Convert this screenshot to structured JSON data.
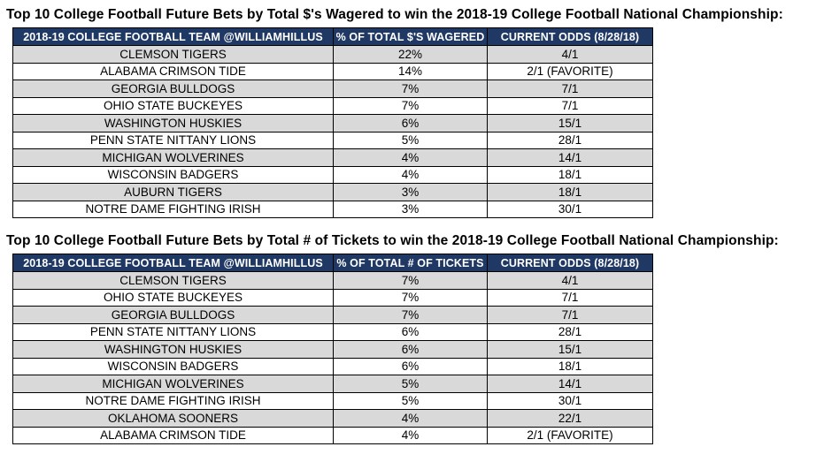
{
  "colors": {
    "header_bg": "#1F3864",
    "header_text": "#FFFFFF",
    "row_alt_bg": "#D9D9D9",
    "row_bg": "#FFFFFF",
    "border": "#000000",
    "title_text": "#000000"
  },
  "chart_data": [
    {
      "type": "table",
      "title": "Top 10 College Football Future Bets by Total $'s Wagered to win the 2018-19 College Football National Championship:",
      "columns": [
        "2018-19 COLLEGE FOOTBALL TEAM @WILLIAMHILLUS",
        "% OF TOTAL $'S WAGERED",
        "CURRENT ODDS (8/28/18)"
      ],
      "rows": [
        [
          "CLEMSON TIGERS",
          "22%",
          "4/1"
        ],
        [
          "ALABAMA CRIMSON TIDE",
          "14%",
          "2/1 (FAVORITE)"
        ],
        [
          "GEORGIA BULLDOGS",
          "7%",
          "7/1"
        ],
        [
          "OHIO STATE BUCKEYES",
          "7%",
          "7/1"
        ],
        [
          "WASHINGTON HUSKIES",
          "6%",
          "15/1"
        ],
        [
          "PENN STATE NITTANY LIONS",
          "5%",
          "28/1"
        ],
        [
          "MICHIGAN WOLVERINES",
          "4%",
          "14/1"
        ],
        [
          "WISCONSIN BADGERS",
          "4%",
          "18/1"
        ],
        [
          "AUBURN TIGERS",
          "3%",
          "18/1"
        ],
        [
          "NOTRE DAME FIGHTING IRISH",
          "3%",
          "30/1"
        ]
      ]
    },
    {
      "type": "table",
      "title": "Top 10 College Football Future Bets by Total # of Tickets to win the 2018-19 College Football National Championship:",
      "columns": [
        "2018-19 COLLEGE FOOTBALL TEAM @WILLIAMHILLUS",
        "% OF TOTAL # OF TICKETS",
        "CURRENT ODDS (8/28/18)"
      ],
      "rows": [
        [
          "CLEMSON TIGERS",
          "7%",
          "4/1"
        ],
        [
          "OHIO STATE BUCKEYES",
          "7%",
          "7/1"
        ],
        [
          "GEORGIA BULLDOGS",
          "7%",
          "7/1"
        ],
        [
          "PENN STATE NITTANY LIONS",
          "6%",
          "28/1"
        ],
        [
          "WASHINGTON HUSKIES",
          "6%",
          "15/1"
        ],
        [
          "WISCONSIN BADGERS",
          "6%",
          "18/1"
        ],
        [
          "MICHIGAN WOLVERINES",
          "5%",
          "14/1"
        ],
        [
          "NOTRE DAME FIGHTING IRISH",
          "5%",
          "30/1"
        ],
        [
          "OKLAHOMA SOONERS",
          "4%",
          "22/1"
        ],
        [
          "ALABAMA CRIMSON TIDE",
          "4%",
          "2/1 (FAVORITE)"
        ]
      ]
    }
  ]
}
